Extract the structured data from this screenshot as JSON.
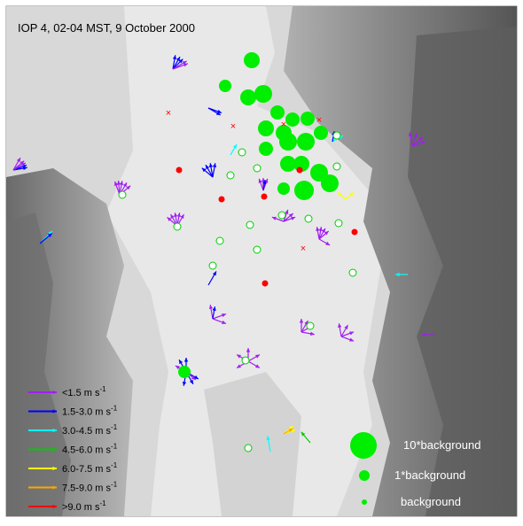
{
  "title": "IOP 4, 02-04 MST, 9 October 2000",
  "legend": {
    "wind": [
      {
        "label": "<1.5 m s",
        "exponent": "-1",
        "color": "#a020f0"
      },
      {
        "label": "1.5-3.0 m s",
        "exponent": "-1",
        "color": "#0000ff"
      },
      {
        "label": "3.0-4.5 m s",
        "exponent": "-1",
        "color": "#00ffff"
      },
      {
        "label": "4.5-6.0 m s",
        "exponent": "-1",
        "color": "#00cc00"
      },
      {
        "label": "6.0-7.5 m s",
        "exponent": "-1",
        "color": "#ffff00"
      },
      {
        "label": "7.5-9.0 m s",
        "exponent": "-1",
        "color": "#ffa500"
      },
      {
        "label": ">9.0 m s",
        "exponent": "-1",
        "color": "#ff0000"
      }
    ],
    "concentration": [
      {
        "label": "10*background"
      },
      {
        "label": "1*background"
      },
      {
        "label": "background"
      }
    ]
  }
}
